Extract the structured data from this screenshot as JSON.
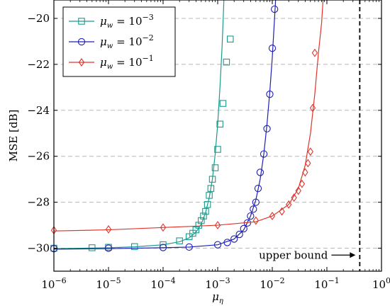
{
  "chart_data": {
    "type": "line",
    "xlabel": "μ_η",
    "ylabel": "MSE [dB]",
    "xscale": "log",
    "xlim": [
      1e-06,
      1
    ],
    "ylim": [
      -31,
      -19.2
    ],
    "xticks": [
      1e-06,
      1e-05,
      0.0001,
      0.001,
      0.01,
      0.1,
      1
    ],
    "xtick_labels": [
      {
        "base": "10",
        "exp": "−6"
      },
      {
        "base": "10",
        "exp": "−5"
      },
      {
        "base": "10",
        "exp": "−4"
      },
      {
        "base": "10",
        "exp": "−3"
      },
      {
        "base": "10",
        "exp": "−2"
      },
      {
        "base": "10",
        "exp": "−1"
      },
      {
        "base": "10",
        "exp": "0"
      }
    ],
    "yticks": [
      -30,
      -28,
      -26,
      -24,
      -22,
      -20
    ],
    "ytick_labels": [
      "−30",
      "−28",
      "−26",
      "−24",
      "−22",
      "−20"
    ],
    "grid": "horizontal dashed",
    "legend_position": "top-left",
    "annotation": {
      "text": "upper bound",
      "x": 0.4
    },
    "series": [
      {
        "name": "μ_w = 10^−3",
        "name_main": "μ",
        "name_sub": "w",
        "name_rest": " = 10",
        "name_exp": "−3",
        "color": "#1b9a8c",
        "marker": "square",
        "curve": [
          [
            1e-06,
            -30.02
          ],
          [
            1e-05,
            -29.98
          ],
          [
            3e-05,
            -29.94
          ],
          [
            0.0001,
            -29.85
          ],
          [
            0.0002,
            -29.72
          ],
          [
            0.0003,
            -29.55
          ],
          [
            0.0004,
            -29.3
          ],
          [
            0.0005,
            -28.95
          ],
          [
            0.0006,
            -28.45
          ],
          [
            0.0007,
            -27.8
          ],
          [
            0.0008,
            -27.0
          ],
          [
            0.0009,
            -25.9
          ],
          [
            0.001,
            -24.6
          ],
          [
            0.0011,
            -23.0
          ],
          [
            0.0012,
            -21.3
          ],
          [
            0.0013,
            -19.2
          ]
        ],
        "points": [
          [
            1e-06,
            -30.0
          ],
          [
            5e-06,
            -29.98
          ],
          [
            1e-05,
            -29.96
          ],
          [
            3e-05,
            -29.93
          ],
          [
            0.0001,
            -29.85
          ],
          [
            0.0002,
            -29.68
          ],
          [
            0.0003,
            -29.5
          ],
          [
            0.00035,
            -29.35
          ],
          [
            0.0004,
            -29.2
          ],
          [
            0.00045,
            -29.0
          ],
          [
            0.0005,
            -28.8
          ],
          [
            0.00055,
            -28.6
          ],
          [
            0.0006,
            -28.4
          ],
          [
            0.00065,
            -28.1
          ],
          [
            0.0007,
            -27.7
          ],
          [
            0.00075,
            -27.4
          ],
          [
            0.0008,
            -27.0
          ],
          [
            0.0009,
            -26.5
          ],
          [
            0.001,
            -25.7
          ],
          [
            0.0011,
            -24.6
          ],
          [
            0.00125,
            -23.7
          ],
          [
            0.00145,
            -21.9
          ],
          [
            0.0017,
            -20.9
          ]
        ]
      },
      {
        "name": "μ_w = 10^−2",
        "name_main": "μ",
        "name_sub": "w",
        "name_rest": " = 10",
        "name_exp": "−2",
        "color": "#1f1fb4",
        "marker": "circle",
        "curve": [
          [
            1e-06,
            -30.04
          ],
          [
            1e-05,
            -30.02
          ],
          [
            0.0001,
            -29.98
          ],
          [
            0.0003,
            -29.95
          ],
          [
            0.001,
            -29.85
          ],
          [
            0.002,
            -29.6
          ],
          [
            0.003,
            -29.2
          ],
          [
            0.004,
            -28.6
          ],
          [
            0.005,
            -27.9
          ],
          [
            0.006,
            -27.0
          ],
          [
            0.007,
            -25.9
          ],
          [
            0.008,
            -24.6
          ],
          [
            0.009,
            -23.2
          ],
          [
            0.01,
            -21.7
          ],
          [
            0.0115,
            -19.2
          ]
        ],
        "points": [
          [
            1e-06,
            -30.02
          ],
          [
            1e-05,
            -30.0
          ],
          [
            0.0001,
            -29.97
          ],
          [
            0.0003,
            -29.95
          ],
          [
            0.001,
            -29.85
          ],
          [
            0.0015,
            -29.75
          ],
          [
            0.002,
            -29.6
          ],
          [
            0.0025,
            -29.4
          ],
          [
            0.003,
            -29.15
          ],
          [
            0.0035,
            -28.9
          ],
          [
            0.004,
            -28.6
          ],
          [
            0.0045,
            -28.3
          ],
          [
            0.005,
            -28.0
          ],
          [
            0.0055,
            -27.4
          ],
          [
            0.006,
            -26.7
          ],
          [
            0.007,
            -25.9
          ],
          [
            0.008,
            -24.8
          ],
          [
            0.009,
            -23.3
          ],
          [
            0.01,
            -21.3
          ],
          [
            0.011,
            -19.6
          ]
        ]
      },
      {
        "name": "μ_w = 10^−1",
        "name_main": "μ",
        "name_sub": "w",
        "name_rest": " = 10",
        "name_exp": "−1",
        "color": "#e0352b",
        "marker": "diamond",
        "curve": [
          [
            1e-06,
            -29.25
          ],
          [
            1e-05,
            -29.2
          ],
          [
            0.0001,
            -29.1
          ],
          [
            0.001,
            -29.0
          ],
          [
            0.005,
            -28.85
          ],
          [
            0.01,
            -28.6
          ],
          [
            0.02,
            -28.1
          ],
          [
            0.03,
            -27.4
          ],
          [
            0.04,
            -26.4
          ],
          [
            0.05,
            -25.0
          ],
          [
            0.06,
            -23.3
          ],
          [
            0.07,
            -21.5
          ],
          [
            0.08,
            -20.2
          ],
          [
            0.085,
            -19.2
          ]
        ],
        "points": [
          [
            1e-06,
            -29.22
          ],
          [
            1e-05,
            -29.18
          ],
          [
            0.0001,
            -29.1
          ],
          [
            0.001,
            -29.0
          ],
          [
            0.005,
            -28.8
          ],
          [
            0.01,
            -28.6
          ],
          [
            0.015,
            -28.4
          ],
          [
            0.02,
            -28.1
          ],
          [
            0.025,
            -27.8
          ],
          [
            0.03,
            -27.5
          ],
          [
            0.035,
            -27.2
          ],
          [
            0.04,
            -26.7
          ],
          [
            0.045,
            -26.3
          ],
          [
            0.05,
            -25.8
          ],
          [
            0.055,
            -23.9
          ],
          [
            0.06,
            -21.5
          ]
        ]
      }
    ]
  }
}
